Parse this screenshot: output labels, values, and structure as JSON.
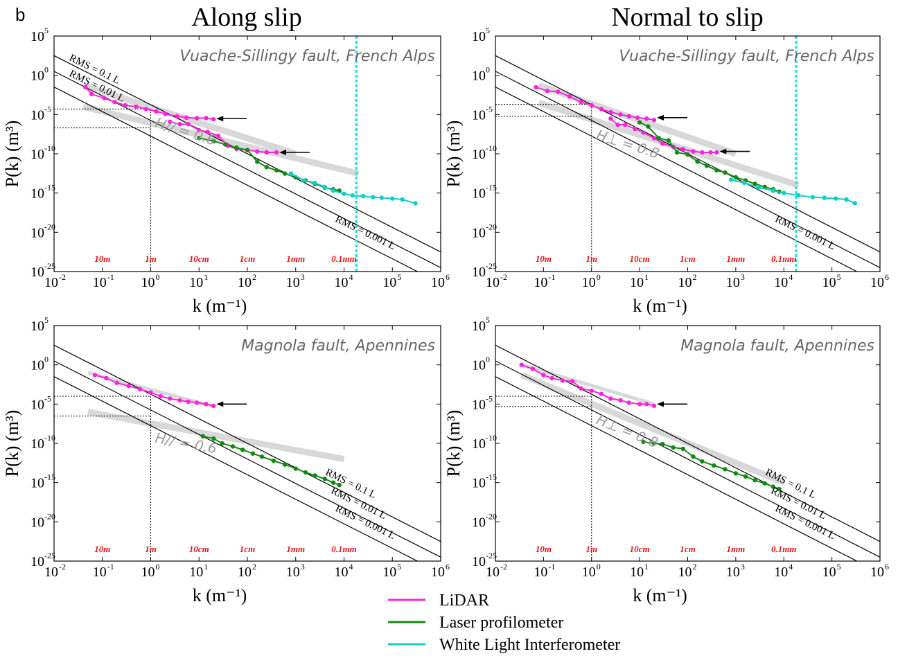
{
  "panel_letter": "b",
  "column_titles": [
    "Along slip",
    "Normal to slip"
  ],
  "colors": {
    "lidar": "#ff22dd",
    "laser": "#118811",
    "wli": "#11cccc",
    "fit": "#d8d8d8",
    "fit_text": "#9a9a9a",
    "scale_text": "#ee1111"
  },
  "legend": [
    {
      "label": "LiDAR",
      "color": "#ff22dd"
    },
    {
      "label": "Laser profilometer",
      "color": "#118811"
    },
    {
      "label": "White Light Interferometer",
      "color": "#11cccc"
    }
  ],
  "chart_data": [
    {
      "type": "line",
      "panel": "top-left",
      "title": "Vuache-Sillingy fault, French Alps",
      "xlabel": "k (m⁻¹)",
      "ylabel": "P(k) (m³)",
      "xscale": "log",
      "yscale": "log",
      "xlim": [
        0.01,
        1000000
      ],
      "ylim": [
        1e-25,
        100000
      ],
      "x_ticks": [
        "10-2",
        "100",
        "102",
        "104",
        "106"
      ],
      "y_ticks": [
        "10-25",
        "10-20",
        "10-15",
        "10-10",
        "10-5",
        "100",
        "105"
      ],
      "wavelength_labels": [
        {
          "text": "10m",
          "k": 0.1
        },
        {
          "text": "1m",
          "k": 1
        },
        {
          "text": "10cm",
          "k": 10
        },
        {
          "text": "1cm",
          "k": 100
        },
        {
          "text": "1mm",
          "k": 1000
        },
        {
          "text": "0.1mm",
          "k": 10000
        }
      ],
      "rms_lines": [
        {
          "label": "RMS = 0.1 L",
          "x": [
            0.01,
            1000000
          ],
          "y": [
            316,
            3.16e-23
          ],
          "label_pos": "left"
        },
        {
          "label": "RMS = 0.01 L",
          "x": [
            0.01,
            1000000
          ],
          "y": [
            3.16,
            3.16e-25
          ],
          "label_pos": "left"
        },
        {
          "label": "RMS = 0.001 L",
          "x": [
            0.01,
            1000000
          ],
          "y": [
            0.0316,
            3.16e-27
          ],
          "label_pos": "right"
        }
      ],
      "fit_lines": [
        {
          "label": "H// = 0.6",
          "x": [
            0.04,
            1000
          ],
          "y": [
            0.05,
            1e-10
          ]
        },
        {
          "label": "",
          "x": [
            0.04,
            20000
          ],
          "y": [
            0.0001,
            3e-13
          ]
        }
      ],
      "reference_marks": {
        "k": 1,
        "y_levels": [
          5e-05,
          2e-07
        ]
      },
      "cutoff_k": 18000,
      "arrows": [
        {
          "k": 20,
          "y": 3e-06
        },
        {
          "k": 400,
          "y": 1.5e-10
        }
      ],
      "series": [
        {
          "name": "LiDAR",
          "color": "#ff22dd",
          "x": [
            0.045,
            0.06,
            0.11,
            0.18,
            0.3,
            0.5,
            0.8,
            1.3,
            2.0,
            3.5,
            5.5,
            9,
            14,
            20
          ],
          "y": [
            0.03,
            0.004,
            0.0012,
            0.0004,
            0.00015,
            0.0001,
            5e-05,
            2.5e-05,
            1.2e-05,
            6e-06,
            4e-06,
            3.5e-06,
            3.5e-06,
            2.5e-06
          ]
        },
        {
          "name": "LiDAR",
          "color": "#ff22dd",
          "x": [
            2.5,
            4,
            6,
            10,
            15,
            25,
            40,
            60,
            100,
            160,
            250,
            400
          ],
          "y": [
            1.2e-06,
            6e-07,
            6e-07,
            1e-07,
            6e-08,
            2e-08,
            1e-09,
            4e-10,
            3e-10,
            2e-10,
            1.5e-10,
            1.5e-10
          ]
        },
        {
          "name": "Laser profilometer",
          "color": "#118811",
          "x": [
            10,
            20,
            35,
            60,
            100,
            160,
            250,
            400,
            600,
            1000,
            1600,
            2500,
            4000,
            6000,
            8000
          ],
          "y": [
            1e-08,
            4e-09,
            1.5e-09,
            6e-10,
            3e-10,
            1e-11,
            2e-12,
            8e-13,
            3e-13,
            1e-13,
            4e-14,
            1.5e-14,
            5e-15,
            3e-15,
            2e-15
          ]
        },
        {
          "name": "White Light Interferometer",
          "color": "#11cccc",
          "x": [
            800,
            1500,
            2500,
            4000,
            6000,
            10000,
            15000,
            25000,
            40000,
            60000,
            100000,
            160000,
            300000
          ],
          "y": [
            3e-13,
            4e-14,
            2e-14,
            6e-15,
            2e-15,
            8e-16,
            5e-16,
            4e-16,
            3e-16,
            2.5e-16,
            2e-16,
            1.5e-16,
            5e-17
          ]
        }
      ]
    },
    {
      "type": "line",
      "panel": "top-right",
      "title": "Vuache-Sillingy fault, French Alps",
      "xlabel": "k (m⁻¹)",
      "ylabel": "P(k) (m³)",
      "xscale": "log",
      "yscale": "log",
      "xlim": [
        0.01,
        1000000
      ],
      "ylim": [
        1e-25,
        100000
      ],
      "x_ticks": [
        "10-2",
        "100",
        "102",
        "104",
        "106"
      ],
      "y_ticks": [
        "10-25",
        "10-20",
        "10-15",
        "10-10",
        "10-5",
        "100",
        "105"
      ],
      "wavelength_labels": [
        {
          "text": "10m",
          "k": 0.1
        },
        {
          "text": "1m",
          "k": 1
        },
        {
          "text": "10cm",
          "k": 10
        },
        {
          "text": "1cm",
          "k": 100
        },
        {
          "text": "1mm",
          "k": 1000
        },
        {
          "text": "0.1mm",
          "k": 10000
        }
      ],
      "rms_lines": [
        {
          "label": "",
          "x": [
            0.01,
            1000000
          ],
          "y": [
            316,
            3.16e-23
          ]
        },
        {
          "label": "",
          "x": [
            0.01,
            1000000
          ],
          "y": [
            3.16,
            3.16e-25
          ]
        },
        {
          "label": "RMS = 0.001 L",
          "x": [
            0.01,
            1000000
          ],
          "y": [
            0.0316,
            3.16e-27
          ],
          "label_pos": "right"
        }
      ],
      "fit_lines": [
        {
          "label": "H⊥ = 0.8",
          "x": [
            0.08,
            20000
          ],
          "y": [
            0.0003,
            1e-14
          ]
        },
        {
          "label": "",
          "x": [
            0.08,
            1000
          ],
          "y": [
            0.05,
            1e-10
          ]
        }
      ],
      "reference_marks": {
        "k": 1,
        "y_levels": [
          0.0002,
          6e-06
        ]
      },
      "cutoff_k": 18000,
      "arrows": [
        {
          "k": 20,
          "y": 4e-06
        },
        {
          "k": 400,
          "y": 2e-10
        }
      ],
      "series": [
        {
          "name": "LiDAR",
          "color": "#ff22dd",
          "x": [
            0.07,
            0.12,
            0.2,
            0.35,
            0.6,
            1.0,
            1.6,
            2.5,
            4,
            6,
            9,
            14,
            20
          ],
          "y": [
            0.03,
            0.01,
            0.008,
            0.002,
            0.0004,
            0.00015,
            5e-05,
            2e-05,
            1e-05,
            6e-06,
            4e-06,
            3e-06,
            2e-06
          ]
        },
        {
          "name": "LiDAR",
          "color": "#ff22dd",
          "x": [
            2.5,
            3.5,
            5,
            8,
            12,
            20,
            30,
            50,
            80,
            130,
            200,
            300,
            400
          ],
          "y": [
            3e-06,
            5e-07,
            5e-07,
            1.5e-07,
            5e-08,
            1e-08,
            2e-09,
            8e-10,
            4e-10,
            2e-10,
            1.5e-10,
            1.5e-10,
            1.5e-10
          ]
        },
        {
          "name": "Laser profilometer",
          "color": "#118811",
          "x": [
            10,
            15,
            25,
            40,
            60,
            100,
            160,
            250,
            400,
            600,
            1000,
            1600,
            2500,
            4000,
            6000,
            8000
          ],
          "y": [
            1e-06,
            3e-07,
            1e-08,
            5e-09,
            1.5e-10,
            8e-11,
            1e-11,
            3e-12,
            8e-13,
            4e-13,
            1e-13,
            4e-14,
            1.5e-14,
            6e-15,
            3e-15,
            1.5e-15
          ]
        },
        {
          "name": "White Light Interferometer",
          "color": "#11cccc",
          "x": [
            800,
            1500,
            3000,
            6000,
            10000,
            20000,
            40000,
            70000,
            120000,
            200000,
            300000
          ],
          "y": [
            5e-14,
            2e-14,
            5e-15,
            2e-15,
            1e-15,
            5e-16,
            3e-16,
            2.5e-16,
            2e-16,
            1.5e-16,
            5e-17
          ]
        }
      ]
    },
    {
      "type": "line",
      "panel": "bottom-left",
      "title": "Magnola fault, Apennines",
      "xlabel": "k (m⁻¹)",
      "ylabel": "P(k) (m³)",
      "xscale": "log",
      "yscale": "log",
      "xlim": [
        0.01,
        1000000
      ],
      "ylim": [
        1e-25,
        100000
      ],
      "x_ticks": [
        "10-2",
        "100",
        "102",
        "104",
        "106"
      ],
      "y_ticks": [
        "10-25",
        "10-20",
        "10-15",
        "10-10",
        "10-5",
        "100",
        "105"
      ],
      "wavelength_labels": [
        {
          "text": "10m",
          "k": 0.1
        },
        {
          "text": "1m",
          "k": 1
        },
        {
          "text": "10cm",
          "k": 10
        },
        {
          "text": "1cm",
          "k": 100
        },
        {
          "text": "1mm",
          "k": 1000
        },
        {
          "text": "0.1mm",
          "k": 10000
        }
      ],
      "rms_lines": [
        {
          "label": "RMS = 0.1 L",
          "x": [
            0.01,
            1000000
          ],
          "y": [
            316,
            3.16e-23
          ],
          "label_pos": "right"
        },
        {
          "label": "RMS = 0.01 L",
          "x": [
            0.01,
            1000000
          ],
          "y": [
            3.16,
            3.16e-25
          ],
          "label_pos": "right"
        },
        {
          "label": "RMS = 0.001 L",
          "x": [
            0.01,
            1000000
          ],
          "y": [
            0.0316,
            3.16e-27
          ],
          "label_pos": "right"
        }
      ],
      "fit_lines": [
        {
          "label": "H// = 0.6",
          "x": [
            0.05,
            10000
          ],
          "y": [
            1e-06,
            1e-12
          ]
        },
        {
          "label": "",
          "x": [
            0.05,
            20
          ],
          "y": [
            0.1,
            5e-06
          ]
        }
      ],
      "reference_marks": {
        "k": 1,
        "y_levels": [
          0.0001,
          3e-07
        ]
      },
      "cutoff_k": null,
      "arrows": [
        {
          "k": 20,
          "y": 1e-05
        }
      ],
      "series": [
        {
          "name": "LiDAR",
          "color": "#ff22dd",
          "x": [
            0.07,
            0.12,
            0.2,
            0.35,
            0.6,
            1.0,
            1.6,
            2.5,
            4,
            6,
            9,
            14,
            20
          ],
          "y": [
            0.05,
            0.02,
            0.005,
            0.002,
            0.0008,
            0.0003,
            0.0001,
            5e-05,
            3e-05,
            2e-05,
            1.5e-05,
            1e-05,
            6e-06
          ]
        },
        {
          "name": "Laser profilometer",
          "color": "#118811",
          "x": [
            12,
            20,
            30,
            50,
            80,
            130,
            200,
            350,
            600,
            1000,
            1600,
            2500,
            4000,
            6000,
            8000
          ],
          "y": [
            8e-10,
            4e-10,
            1e-10,
            4e-11,
            1.5e-11,
            5e-12,
            2e-12,
            6e-13,
            2e-13,
            6e-14,
            2e-14,
            8e-15,
            3e-15,
            1e-15,
            5e-16
          ]
        }
      ]
    },
    {
      "type": "line",
      "panel": "bottom-right",
      "title": "Magnola fault, Apennines",
      "xlabel": "k (m⁻¹)",
      "ylabel": "P(k) (m³)",
      "xscale": "log",
      "yscale": "log",
      "xlim": [
        0.01,
        1000000
      ],
      "ylim": [
        1e-25,
        100000
      ],
      "x_ticks": [
        "10-2",
        "100",
        "102",
        "104",
        "106"
      ],
      "y_ticks": [
        "10-25",
        "10-20",
        "10-15",
        "10-10",
        "10-5",
        "100",
        "105"
      ],
      "wavelength_labels": [
        {
          "text": "10m",
          "k": 0.1
        },
        {
          "text": "1m",
          "k": 1
        },
        {
          "text": "10cm",
          "k": 10
        },
        {
          "text": "1cm",
          "k": 100
        },
        {
          "text": "1mm",
          "k": 1000
        },
        {
          "text": "0.1mm",
          "k": 10000
        }
      ],
      "rms_lines": [
        {
          "label": "RMS = 0.1 L",
          "x": [
            0.01,
            1000000
          ],
          "y": [
            316,
            3.16e-23
          ],
          "label_pos": "right"
        },
        {
          "label": "RMS = 0.01 L",
          "x": [
            0.01,
            1000000
          ],
          "y": [
            3.16,
            3.16e-25
          ],
          "label_pos": "right"
        },
        {
          "label": "RMS = 0.001 L",
          "x": [
            0.01,
            1000000
          ],
          "y": [
            0.0316,
            3.16e-27
          ],
          "label_pos": "right"
        }
      ],
      "fit_lines": [
        {
          "label": "H⊥ = 0.8",
          "x": [
            0.035,
            10000
          ],
          "y": [
            0.05,
            1e-15
          ]
        },
        {
          "label": "",
          "x": [
            0.035,
            20
          ],
          "y": [
            1,
            1e-05
          ]
        }
      ],
      "reference_marks": {
        "k": 1,
        "y_levels": [
          0.0001,
          5e-06
        ]
      },
      "cutoff_k": null,
      "arrows": [
        {
          "k": 20,
          "y": 1e-05
        }
      ],
      "series": [
        {
          "name": "LiDAR",
          "color": "#ff22dd",
          "x": [
            0.035,
            0.06,
            0.1,
            0.15,
            0.25,
            0.4,
            0.6,
            1.0,
            1.6,
            2.5,
            4,
            6,
            10,
            14,
            20
          ],
          "y": [
            1,
            0.3,
            0.05,
            0.02,
            0.01,
            0.008,
            0.001,
            0.0005,
            0.0002,
            5e-05,
            3e-05,
            1.5e-05,
            1e-05,
            1e-05,
            6e-06
          ]
        },
        {
          "name": "Laser profilometer",
          "color": "#118811",
          "x": [
            12,
            20,
            30,
            50,
            80,
            130,
            200,
            350,
            600,
            1000,
            1600,
            2500,
            4000,
            6000,
            8000
          ],
          "y": [
            1.5e-10,
            1e-10,
            8e-11,
            3e-11,
            2e-11,
            2e-12,
            5e-13,
            1.5e-13,
            5e-14,
            1.5e-14,
            6e-15,
            2e-15,
            8e-16,
            3e-16,
            1.5e-16
          ]
        }
      ]
    }
  ]
}
